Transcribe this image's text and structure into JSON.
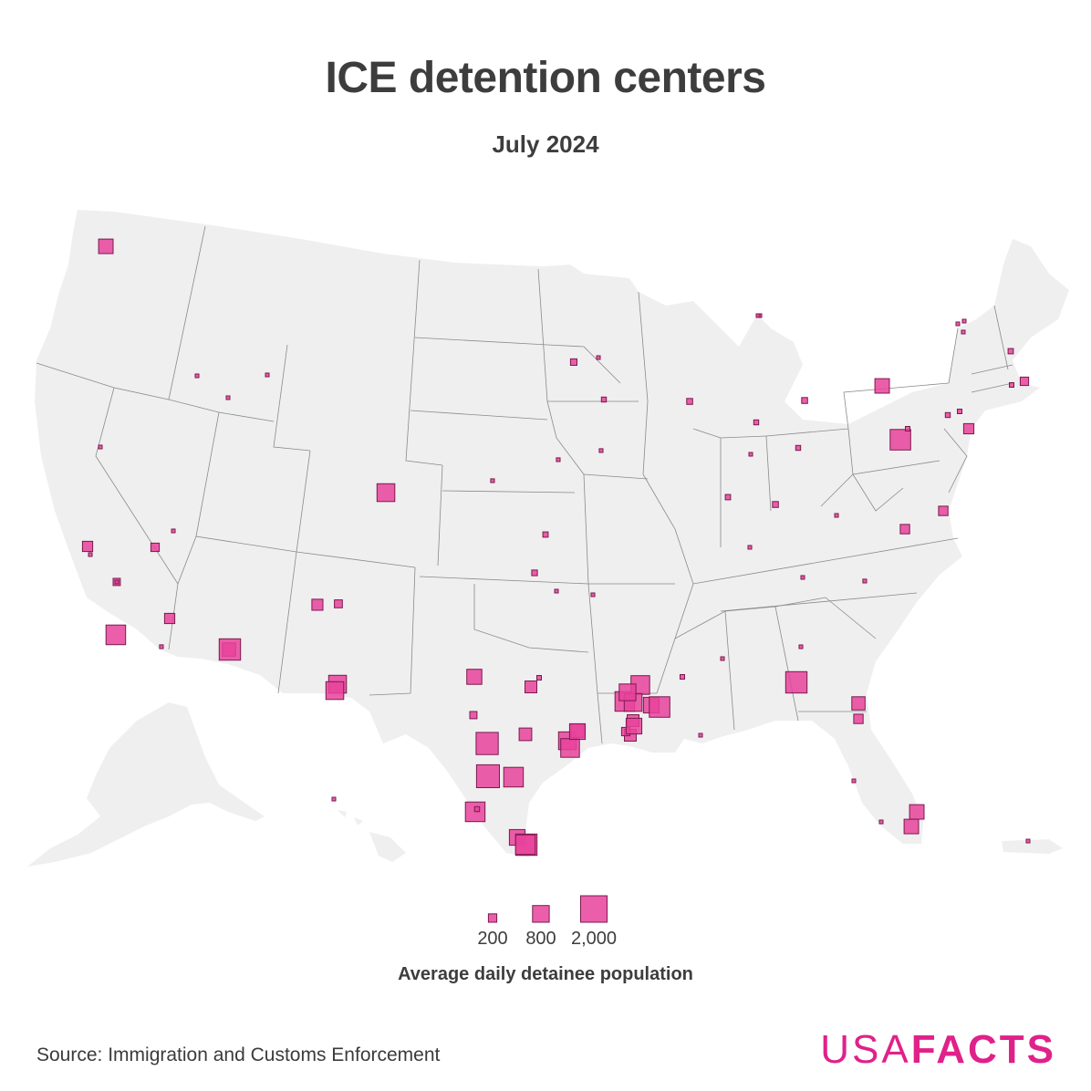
{
  "title": "ICE detention centers",
  "subtitle": "July 2024",
  "legend": {
    "title": "Average daily detainee population",
    "items": [
      {
        "label": "200",
        "value": 200
      },
      {
        "label": "800",
        "value": 800
      },
      {
        "label": "2,000",
        "value": 2000
      }
    ]
  },
  "source": "Source: Immigration and Customs Enforcement",
  "logo": {
    "part1": "USA",
    "part2": "FACTS"
  },
  "colors": {
    "marker_fill": "#e8439b",
    "marker_stroke": "#7a1a4e",
    "land": "#efefef",
    "borders": "#8a8a8a",
    "brand": "#e0218a"
  },
  "facilities": [
    {
      "region": "Washington",
      "population": 600
    },
    {
      "region": "Idaho",
      "population": 20
    },
    {
      "region": "Idaho",
      "population": 20
    },
    {
      "region": "Idaho",
      "population": 20
    },
    {
      "region": "Nevada",
      "population": 30
    },
    {
      "region": "California",
      "population": 300
    },
    {
      "region": "California",
      "population": 30
    },
    {
      "region": "California",
      "population": 150
    },
    {
      "region": "California",
      "population": 30
    },
    {
      "region": "California",
      "population": 1100
    },
    {
      "region": "California",
      "population": 40
    },
    {
      "region": "Nevada",
      "population": 200
    },
    {
      "region": "Nevada",
      "population": 30
    },
    {
      "region": "Arizona",
      "population": 500
    },
    {
      "region": "Arizona",
      "population": 1300
    },
    {
      "region": "Arizona",
      "population": 300
    },
    {
      "region": "Colorado",
      "population": 900
    },
    {
      "region": "New Mexico",
      "population": 350
    },
    {
      "region": "New Mexico",
      "population": 180
    },
    {
      "region": "Texas",
      "population": 900
    },
    {
      "region": "Texas",
      "population": 900
    },
    {
      "region": "Texas",
      "population": 650
    },
    {
      "region": "Texas",
      "population": 400
    },
    {
      "region": "Texas",
      "population": 60
    },
    {
      "region": "Texas",
      "population": 150
    },
    {
      "region": "Texas",
      "population": 1400
    },
    {
      "region": "Texas",
      "population": 1500
    },
    {
      "region": "Texas",
      "population": 1100
    },
    {
      "region": "Texas",
      "population": 450
    },
    {
      "region": "Texas",
      "population": 900
    },
    {
      "region": "Texas",
      "population": 500
    },
    {
      "region": "Texas",
      "population": 1000
    },
    {
      "region": "Texas",
      "population": 1100
    },
    {
      "region": "Texas",
      "population": 70
    },
    {
      "region": "Texas",
      "population": 700
    },
    {
      "region": "Texas",
      "population": 1300
    },
    {
      "region": "Texas",
      "population": 1100
    },
    {
      "region": "Texas",
      "population": 700
    },
    {
      "region": "Kansas",
      "population": 80
    },
    {
      "region": "Oklahoma",
      "population": 90
    },
    {
      "region": "Oklahoma",
      "population": 20
    },
    {
      "region": "Arkansas",
      "population": 20
    },
    {
      "region": "Nebraska",
      "population": 40
    },
    {
      "region": "Minnesota",
      "population": 120
    },
    {
      "region": "Minnesota",
      "population": 15
    },
    {
      "region": "Minnesota",
      "population": 70
    },
    {
      "region": "Iowa",
      "population": 40
    },
    {
      "region": "Iowa",
      "population": 40
    },
    {
      "region": "Wisconsin",
      "population": 100
    },
    {
      "region": "Michigan",
      "population": 30
    },
    {
      "region": "Michigan",
      "population": 70
    },
    {
      "region": "Michigan",
      "population": 100
    },
    {
      "region": "Ohio",
      "population": 70
    },
    {
      "region": "Indiana",
      "population": 30
    },
    {
      "region": "Indiana",
      "population": 80
    },
    {
      "region": "Kentucky",
      "population": 100
    },
    {
      "region": "Kentucky",
      "population": 20
    },
    {
      "region": "West Virginia",
      "population": 20
    },
    {
      "region": "Louisiana",
      "population": 1100
    },
    {
      "region": "Louisiana",
      "population": 1000
    },
    {
      "region": "Louisiana",
      "population": 900
    },
    {
      "region": "Louisiana",
      "population": 700
    },
    {
      "region": "Louisiana",
      "population": 1200
    },
    {
      "region": "Louisiana",
      "population": 800
    },
    {
      "region": "Louisiana",
      "population": 400
    },
    {
      "region": "Louisiana",
      "population": 400
    },
    {
      "region": "Louisiana",
      "population": 200
    },
    {
      "region": "Louisiana",
      "population": 700
    },
    {
      "region": "Mississippi",
      "population": 60
    },
    {
      "region": "Mississippi",
      "population": 20
    },
    {
      "region": "Alabama",
      "population": 30
    },
    {
      "region": "Tennessee",
      "population": 20
    },
    {
      "region": "North Carolina",
      "population": 40
    },
    {
      "region": "Georgia",
      "population": 20
    },
    {
      "region": "Georgia",
      "population": 1300
    },
    {
      "region": "Florida",
      "population": 500
    },
    {
      "region": "Florida",
      "population": 250
    },
    {
      "region": "Florida",
      "population": 20
    },
    {
      "region": "Florida",
      "population": 20
    },
    {
      "region": "Florida",
      "population": 600
    },
    {
      "region": "Florida",
      "population": 600
    },
    {
      "region": "Pennsylvania",
      "population": 1200
    },
    {
      "region": "Pennsylvania",
      "population": 60
    },
    {
      "region": "New York",
      "population": 600
    },
    {
      "region": "New York",
      "population": 70
    },
    {
      "region": "New York",
      "population": 60
    },
    {
      "region": "New Jersey",
      "population": 300
    },
    {
      "region": "Virginia",
      "population": 250
    },
    {
      "region": "Virginia",
      "population": 250
    },
    {
      "region": "Vermont",
      "population": 20
    },
    {
      "region": "Vermont",
      "population": 20
    },
    {
      "region": "Vermont",
      "population": 15
    },
    {
      "region": "New Hampshire",
      "population": 80
    },
    {
      "region": "Massachusetts",
      "population": 200
    },
    {
      "region": "Massachusetts",
      "population": 60
    },
    {
      "region": "Michigan (Upper Peninsula)",
      "population": 20
    },
    {
      "region": "Hawaii",
      "population": 30
    },
    {
      "region": "Puerto Rico",
      "population": 20
    }
  ]
}
